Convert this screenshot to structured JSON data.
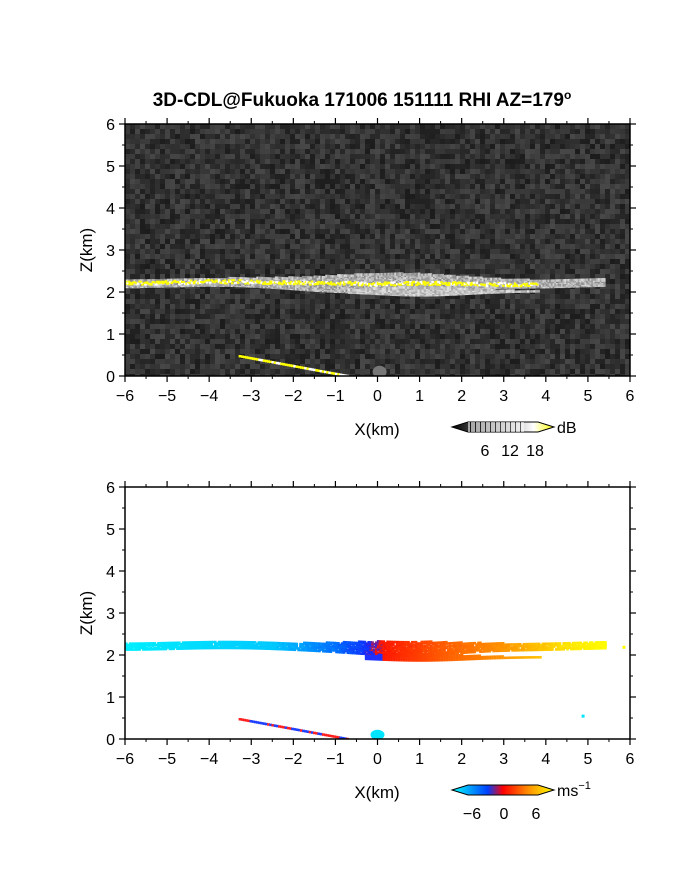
{
  "figure": {
    "title": "3D-CDL@Fukuoka 171006 151111 RHI AZ=179"
  },
  "chart_data": [
    {
      "type": "heatmap",
      "xlabel": "X(km)",
      "ylabel": "Z(km)",
      "xlim": [
        -6,
        6
      ],
      "ylim": [
        0,
        6
      ],
      "xticks": [
        "-6",
        "-5",
        "-4",
        "-3",
        "-2",
        "-1",
        "0",
        "1",
        "2",
        "3",
        "4",
        "5",
        "6"
      ],
      "yticks": [
        "0",
        "1",
        "2",
        "3",
        "4",
        "5",
        "6"
      ],
      "background": "noise",
      "colorbar": {
        "label": "dB",
        "ticks": [
          "6",
          "12",
          "18"
        ],
        "range": [
          0,
          21
        ],
        "colors": [
          "#000000",
          "#ffffff",
          "#ffff00"
        ]
      },
      "features": [
        {
          "name": "layer",
          "x": [
            -6.0,
            5.4
          ],
          "z_center": 2.25
        },
        {
          "name": "lower-band",
          "x": [
            -0.7,
            3.8
          ],
          "z_center": 2.05
        },
        {
          "name": "ground-streak",
          "x": [
            -3.3,
            -0.7
          ],
          "z": [
            0.5,
            0.02
          ]
        }
      ]
    },
    {
      "type": "heatmap",
      "xlabel": "X(km)",
      "ylabel": "Z(km)",
      "xlim": [
        -6,
        6
      ],
      "ylim": [
        0,
        6
      ],
      "xticks": [
        "-6",
        "-5",
        "-4",
        "-3",
        "-2",
        "-1",
        "0",
        "1",
        "2",
        "3",
        "4",
        "5",
        "6"
      ],
      "yticks": [
        "0",
        "1",
        "2",
        "3",
        "4",
        "5",
        "6"
      ],
      "background": "white",
      "colorbar": {
        "label": "ms",
        "label_exp": "−1",
        "ticks": [
          "−6",
          "0",
          "6"
        ],
        "range": [
          -9,
          9
        ],
        "colors": [
          "#00ffff",
          "#0040ff",
          "#ff0000",
          "#ff9000",
          "#ffff00"
        ]
      },
      "features": [
        {
          "name": "layer",
          "x": [
            -6.0,
            5.4
          ],
          "z_center": 2.25
        },
        {
          "name": "ground-streak",
          "x": [
            -3.3,
            -0.7
          ],
          "z": [
            0.5,
            0.02
          ]
        }
      ]
    }
  ]
}
